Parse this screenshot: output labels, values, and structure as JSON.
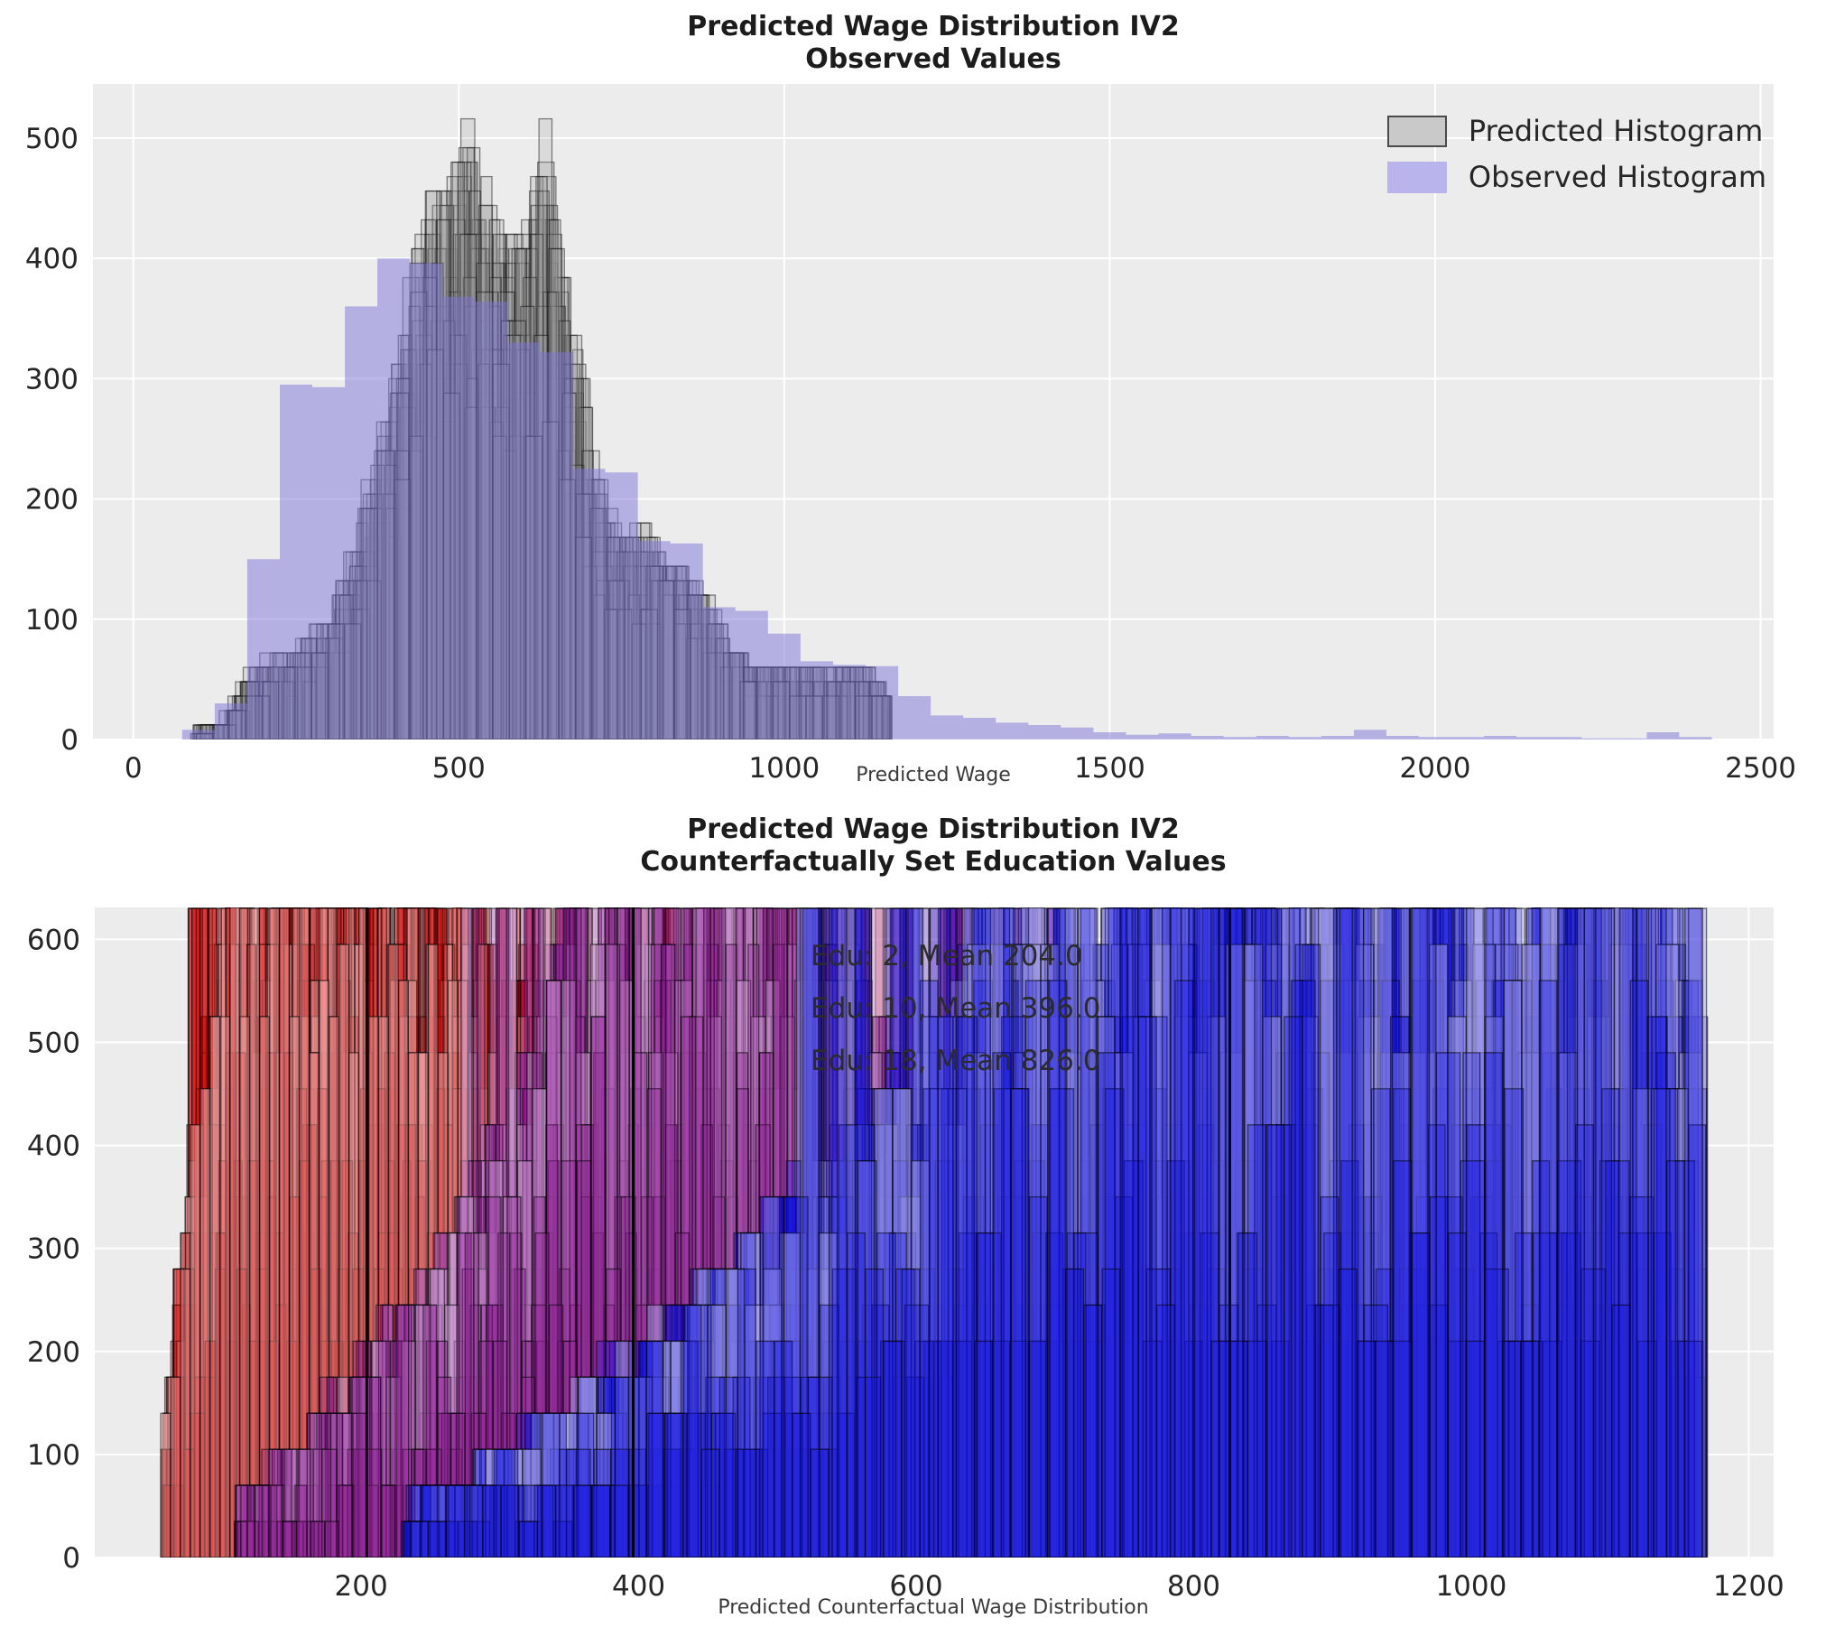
{
  "figure": {
    "bg": "#ffffff",
    "axes_bg": "#ececec",
    "grid_color": "#ffffff",
    "tick_color": "#262626",
    "title_color": "#1c1c1c"
  },
  "chart_data": [
    {
      "type": "histogram",
      "title_lines": [
        "Predicted Wage Distribution IV2",
        "Observed Values"
      ],
      "xlabel": "Predicted Wage",
      "xlim": [
        -62,
        2520
      ],
      "ylim": [
        0,
        545
      ],
      "xticks": [
        0,
        500,
        1000,
        1500,
        2000,
        2500
      ],
      "yticks": [
        0,
        100,
        200,
        300,
        400,
        500
      ],
      "grid": true,
      "legend_position": "upper right",
      "legend": [
        {
          "label": "Predicted Histogram",
          "color": "#c9c9c9",
          "edge": "#4a4a4a"
        },
        {
          "label": "Observed Histogram",
          "color": "#b9b5ec",
          "edge": "none"
        }
      ],
      "observed_histogram": {
        "color": "#7c76d8",
        "fill_opacity": 0.5,
        "bin_width": 50,
        "bin_start": 75,
        "counts": [
          8,
          30,
          150,
          295,
          293,
          360,
          400,
          396,
          368,
          364,
          330,
          322,
          225,
          222,
          165,
          163,
          110,
          107,
          88,
          65,
          62,
          61,
          36,
          20,
          18,
          14,
          12,
          10,
          6,
          4,
          5,
          3,
          2,
          3,
          2,
          3,
          8,
          3,
          2,
          2,
          3,
          2,
          2,
          1,
          1,
          6,
          2
        ]
      },
      "predicted_ensemble": {
        "color": "#9a9a9a",
        "edge": "rgba(15,15,15,0.5)",
        "fill_opacity": 0.22,
        "n_layers": 26,
        "bin_width": 21,
        "range": [
          88,
          1155
        ],
        "seed": 7,
        "height_base": 0.55,
        "height_span": 0.48,
        "quantize": 12,
        "cap": 545,
        "cap_prob": 0,
        "light_every": 0,
        "envelope": [
          [
            88,
            4
          ],
          [
            120,
            10
          ],
          [
            150,
            22
          ],
          [
            185,
            60
          ],
          [
            215,
            68
          ],
          [
            245,
            70
          ],
          [
            275,
            88
          ],
          [
            305,
            105
          ],
          [
            335,
            155
          ],
          [
            365,
            215
          ],
          [
            395,
            270
          ],
          [
            420,
            355
          ],
          [
            445,
            438
          ],
          [
            470,
            450
          ],
          [
            495,
            470
          ],
          [
            515,
            512
          ],
          [
            535,
            470
          ],
          [
            560,
            435
          ],
          [
            585,
            422
          ],
          [
            610,
            425
          ],
          [
            633,
            508
          ],
          [
            650,
            420
          ],
          [
            665,
            350
          ],
          [
            685,
            318
          ],
          [
            705,
            250
          ],
          [
            725,
            192
          ],
          [
            745,
            178
          ],
          [
            770,
            178
          ],
          [
            795,
            172
          ],
          [
            815,
            148
          ],
          [
            840,
            140
          ],
          [
            865,
            133
          ],
          [
            885,
            112
          ],
          [
            905,
            96
          ],
          [
            930,
            75
          ],
          [
            955,
            66
          ],
          [
            980,
            62
          ],
          [
            1020,
            62
          ],
          [
            1060,
            62
          ],
          [
            1100,
            61
          ],
          [
            1140,
            58
          ],
          [
            1155,
            40
          ]
        ]
      }
    },
    {
      "type": "histogram",
      "title_lines": [
        "Predicted Wage Distribution IV2",
        "Counterfactually Set Education Values"
      ],
      "xlabel": "Predicted Counterfactual Wage Distribution",
      "xlim": [
        8,
        1218
      ],
      "ylim": [
        0,
        631
      ],
      "xticks": [
        200,
        400,
        600,
        800,
        1000,
        1200
      ],
      "yticks": [
        0,
        100,
        200,
        300,
        400,
        500,
        600
      ],
      "grid": true,
      "annotations": [
        "Edu: 2, Mean 204.0",
        "Edu: 10, Mean 396.0",
        "Edu: 18, Mean 826.0"
      ],
      "mean_lines": {
        "color": "#000000",
        "width": 3,
        "values": [
          204.0,
          396.0,
          826.0
        ]
      },
      "groups": [
        {
          "edu": 2,
          "mean": 204.0,
          "color": "#cf0000",
          "light_color": "#f2a2a2",
          "edge": "rgba(0,0,0,0.55)",
          "n_layers": 36,
          "bin_width": 7,
          "range": [
            55,
            725
          ],
          "seed": 11,
          "cap": 631,
          "cap_prob": 0.06,
          "light_every": 5,
          "quantize": 35,
          "envelope": [
            [
              55,
              80
            ],
            [
              65,
              200
            ],
            [
              75,
              340
            ],
            [
              85,
              450
            ],
            [
              95,
              550
            ],
            [
              105,
              630
            ],
            [
              130,
              630
            ],
            [
              160,
              630
            ],
            [
              200,
              630
            ],
            [
              240,
              630
            ],
            [
              270,
              600
            ],
            [
              300,
              560
            ],
            [
              330,
              520
            ],
            [
              360,
              490
            ],
            [
              390,
              460
            ],
            [
              420,
              430
            ],
            [
              450,
              400
            ],
            [
              480,
              430
            ],
            [
              510,
              380
            ],
            [
              540,
              430
            ],
            [
              570,
              360
            ],
            [
              600,
              300
            ],
            [
              630,
              430
            ],
            [
              660,
              240
            ],
            [
              690,
              120
            ],
            [
              720,
              50
            ]
          ]
        },
        {
          "edu": 10,
          "mean": 396.0,
          "color": "#8d1d96",
          "light_color": "#cf9ed6",
          "edge": "rgba(0,0,0,0.55)",
          "n_layers": 30,
          "bin_width": 9,
          "range": [
            108,
            912
          ],
          "seed": 22,
          "cap": 631,
          "cap_prob": 0.06,
          "light_every": 5,
          "quantize": 35,
          "envelope": [
            [
              110,
              50
            ],
            [
              150,
              110
            ],
            [
              190,
              170
            ],
            [
              230,
              240
            ],
            [
              270,
              330
            ],
            [
              300,
              420
            ],
            [
              330,
              500
            ],
            [
              355,
              630
            ],
            [
              390,
              630
            ],
            [
              420,
              630
            ],
            [
              450,
              630
            ],
            [
              480,
              630
            ],
            [
              510,
              560
            ],
            [
              540,
              630
            ],
            [
              570,
              490
            ],
            [
              600,
              440
            ],
            [
              630,
              430
            ],
            [
              660,
              430
            ],
            [
              690,
              370
            ],
            [
              720,
              310
            ],
            [
              750,
              260
            ],
            [
              780,
              220
            ],
            [
              810,
              180
            ],
            [
              840,
              140
            ],
            [
              870,
              100
            ],
            [
              910,
              50
            ]
          ]
        },
        {
          "edu": 18,
          "mean": 826.0,
          "color": "#1313e0",
          "light_color": "#a9a6ea",
          "edge": "rgba(0,0,0,0.55)",
          "n_layers": 30,
          "bin_width": 14,
          "range": [
            228,
            1168
          ],
          "seed": 33,
          "cap": 631,
          "cap_prob": 0.1,
          "light_every": 5,
          "quantize": 35,
          "envelope": [
            [
              230,
              50
            ],
            [
              270,
              80
            ],
            [
              310,
              110
            ],
            [
              350,
              150
            ],
            [
              390,
              190
            ],
            [
              430,
              240
            ],
            [
              470,
              290
            ],
            [
              510,
              340
            ],
            [
              550,
              400
            ],
            [
              590,
              460
            ],
            [
              620,
              520
            ],
            [
              650,
              580
            ],
            [
              680,
              630
            ],
            [
              720,
              630
            ],
            [
              760,
              630
            ],
            [
              800,
              630
            ],
            [
              840,
              630
            ],
            [
              880,
              630
            ],
            [
              920,
              630
            ],
            [
              960,
              630
            ],
            [
              1000,
              630
            ],
            [
              1040,
              630
            ],
            [
              1080,
              630
            ],
            [
              1120,
              630
            ],
            [
              1150,
              560
            ],
            [
              1165,
              490
            ]
          ]
        }
      ]
    }
  ]
}
